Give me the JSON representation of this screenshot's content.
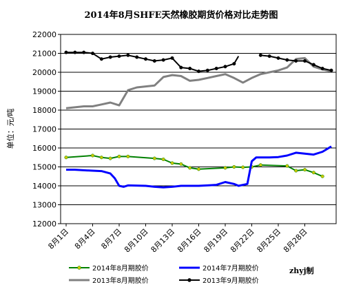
{
  "chart_data": {
    "type": "line",
    "title": "2014年8月SHFE天然橡胶期货价格对比走势图",
    "ylabel": "单位：元/吨",
    "credit": "zhyj制",
    "ylim": [
      12000,
      22000
    ],
    "yticks": [
      12000,
      13000,
      14000,
      15000,
      16000,
      17000,
      18000,
      19000,
      20000,
      21000,
      22000
    ],
    "y_gridlines": true,
    "x_day_range": [
      1,
      31
    ],
    "x_ticks": [
      {
        "day": 1,
        "label": "8月1日"
      },
      {
        "day": 4,
        "label": "8月4日"
      },
      {
        "day": 7,
        "label": "8月7日"
      },
      {
        "day": 10,
        "label": "8月10日"
      },
      {
        "day": 13,
        "label": "8月13日"
      },
      {
        "day": 16,
        "label": "8月16日"
      },
      {
        "day": 19,
        "label": "8月19日"
      },
      {
        "day": 22,
        "label": "8月22日"
      },
      {
        "day": 25,
        "label": "8月25日"
      },
      {
        "day": 28,
        "label": "8月28日"
      }
    ],
    "legend_position": "bottom",
    "series": [
      {
        "name": "2014年8月期胶价",
        "color": "#008000",
        "marker": "#c8c800",
        "width": 2,
        "points": [
          [
            1,
            15500
          ],
          [
            4,
            15600
          ],
          [
            5,
            15500
          ],
          [
            6,
            15450
          ],
          [
            7,
            15550
          ],
          [
            8,
            15550
          ],
          [
            11,
            15450
          ],
          [
            12,
            15400
          ],
          [
            13,
            15200
          ],
          [
            14,
            15150
          ],
          [
            15,
            14950
          ],
          [
            16,
            14880
          ],
          [
            19,
            14950
          ],
          [
            20,
            15000
          ],
          [
            21,
            14980
          ],
          [
            22,
            15000
          ],
          [
            23,
            15100
          ],
          [
            26,
            15050
          ],
          [
            27,
            14800
          ],
          [
            28,
            14850
          ],
          [
            29,
            14700
          ],
          [
            30,
            14500
          ]
        ]
      },
      {
        "name": "2014年7月期胶价",
        "color": "#0000ff",
        "marker": null,
        "width": 3,
        "points": [
          [
            1,
            14850
          ],
          [
            2,
            14850
          ],
          [
            3,
            14820
          ],
          [
            4,
            14800
          ],
          [
            5,
            14780
          ],
          [
            6,
            14650
          ],
          [
            6.5,
            14400
          ],
          [
            7,
            14000
          ],
          [
            7.5,
            13950
          ],
          [
            8,
            14020
          ],
          [
            10,
            14000
          ],
          [
            11,
            13950
          ],
          [
            12,
            13920
          ],
          [
            13,
            13950
          ],
          [
            14,
            14000
          ],
          [
            15,
            14000
          ],
          [
            16,
            14000
          ],
          [
            17,
            14020
          ],
          [
            18,
            14050
          ],
          [
            19,
            14200
          ],
          [
            20,
            14100
          ],
          [
            20.5,
            14000
          ],
          [
            21.5,
            14100
          ],
          [
            22,
            15300
          ],
          [
            22.5,
            15500
          ],
          [
            24,
            15500
          ],
          [
            25,
            15520
          ],
          [
            26,
            15600
          ],
          [
            27,
            15750
          ],
          [
            28,
            15700
          ],
          [
            29,
            15650
          ],
          [
            30,
            15800
          ],
          [
            31,
            16080
          ]
        ]
      },
      {
        "name": "2013年8月期胶价",
        "color": "#808080",
        "marker": null,
        "width": 3,
        "points": [
          [
            1,
            18100
          ],
          [
            2,
            18150
          ],
          [
            3,
            18200
          ],
          [
            4,
            18200
          ],
          [
            5,
            18300
          ],
          [
            6,
            18400
          ],
          [
            7,
            18250
          ],
          [
            8,
            19050
          ],
          [
            9,
            19200
          ],
          [
            10,
            19250
          ],
          [
            11,
            19300
          ],
          [
            12,
            19750
          ],
          [
            13,
            19850
          ],
          [
            14,
            19800
          ],
          [
            15,
            19550
          ],
          [
            16,
            19600
          ],
          [
            17,
            19700
          ],
          [
            18,
            19800
          ],
          [
            19,
            19900
          ],
          [
            20,
            19700
          ],
          [
            21,
            19450
          ],
          [
            22,
            19700
          ],
          [
            23,
            19900
          ],
          [
            24,
            20000
          ],
          [
            25,
            20100
          ],
          [
            26,
            20250
          ],
          [
            27,
            20700
          ],
          [
            28,
            20750
          ],
          [
            29,
            20300
          ],
          [
            30,
            20150
          ],
          [
            31,
            20050
          ]
        ]
      },
      {
        "name": "2013年9月期胶价",
        "color": "#000000",
        "marker": "#000000",
        "width": 2,
        "segments": [
          [
            [
              1,
              21050
            ],
            [
              2,
              21050
            ],
            [
              3,
              21050
            ],
            [
              4,
              21000
            ],
            [
              5,
              20700
            ],
            [
              6,
              20800
            ],
            [
              7,
              20850
            ],
            [
              8,
              20900
            ],
            [
              9,
              20800
            ],
            [
              10,
              20700
            ],
            [
              11,
              20600
            ],
            [
              12,
              20650
            ],
            [
              13,
              20750
            ],
            [
              14,
              20250
            ],
            [
              15,
              20200
            ],
            [
              16,
              20050
            ],
            [
              17,
              20100
            ],
            [
              18,
              20200
            ],
            [
              19,
              20300
            ],
            [
              20,
              20450
            ],
            [
              20.5,
              20850
            ]
          ],
          [
            [
              23,
              20900
            ],
            [
              24,
              20850
            ],
            [
              25,
              20750
            ],
            [
              26,
              20650
            ],
            [
              27,
              20600
            ],
            [
              28,
              20600
            ],
            [
              29,
              20400
            ],
            [
              30,
              20200
            ],
            [
              31,
              20100
            ]
          ]
        ]
      }
    ]
  }
}
